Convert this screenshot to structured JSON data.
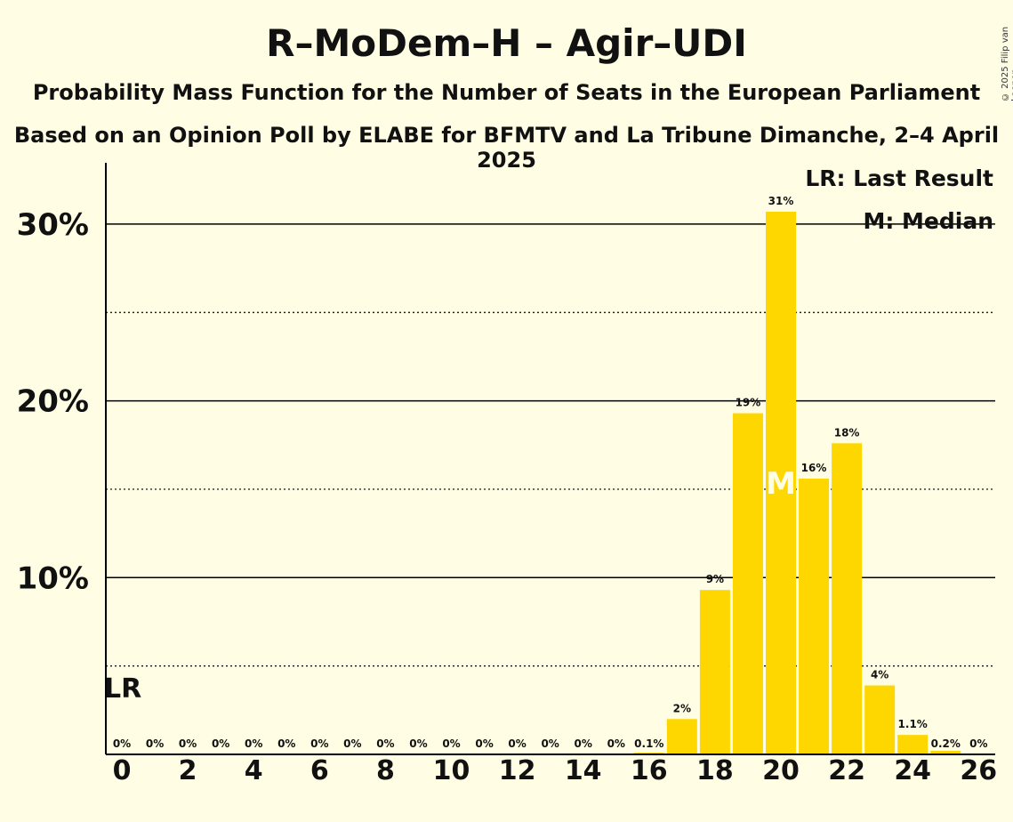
{
  "chart_data": {
    "type": "bar",
    "title": "R–MoDem–H – Agir–UDI",
    "subtitle": "Probability Mass Function for the Number of Seats in the European Parliament",
    "source": "Based on an Opinion Poll by ELABE for BFMTV and La Tribune Dimanche, 2–4 April 2025",
    "copyright": "© 2025 Filip van Laenen",
    "x": [
      0,
      1,
      2,
      3,
      4,
      5,
      6,
      7,
      8,
      9,
      10,
      11,
      12,
      13,
      14,
      15,
      16,
      17,
      18,
      19,
      20,
      21,
      22,
      23,
      24,
      25,
      26
    ],
    "values": [
      0,
      0,
      0,
      0,
      0,
      0,
      0,
      0,
      0,
      0,
      0,
      0,
      0,
      0,
      0,
      0,
      0.1,
      2.0,
      9.3,
      19.3,
      30.7,
      15.6,
      17.6,
      3.9,
      1.1,
      0.2,
      0
    ],
    "value_labels": [
      "0%",
      "0%",
      "0%",
      "0%",
      "0%",
      "0%",
      "0%",
      "0%",
      "0%",
      "0%",
      "0%",
      "0%",
      "0%",
      "0%",
      "0%",
      "0%",
      "0.1%",
      "2%",
      "9%",
      "19%",
      "31%",
      "16%",
      "18%",
      "4%",
      "1.1%",
      "0.2%",
      "0%"
    ],
    "x_tick_labels": [
      "0",
      "2",
      "4",
      "6",
      "8",
      "10",
      "12",
      "14",
      "16",
      "18",
      "20",
      "22",
      "24",
      "26"
    ],
    "y_tick_labels": [
      "10%",
      "20%",
      "30%"
    ],
    "ylim": [
      0,
      33.5
    ],
    "last_result_seat": 0,
    "last_result_marker": "LR",
    "median_seat": 20,
    "median_marker": "M",
    "legend": [
      "LR: Last Result",
      "M: Median"
    ],
    "colors": {
      "bar": "#FFD700",
      "background": "#FFFDE3",
      "axis": "#000000"
    }
  }
}
